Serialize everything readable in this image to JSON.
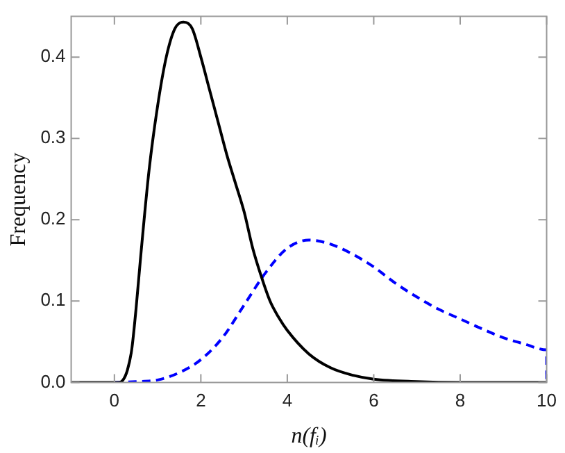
{
  "chart_data": {
    "type": "line",
    "xlabel": "n(fᵢ)",
    "ylabel": "Frequency",
    "xlim": [
      -1,
      10
    ],
    "ylim": [
      0,
      0.45
    ],
    "xticks": [
      0,
      2,
      4,
      6,
      8,
      10
    ],
    "yticks": [
      {
        "value": 0,
        "label": "0.0"
      },
      0.1,
      0.2,
      0.3,
      0.4
    ],
    "grid": false,
    "legend": false,
    "marker": "none",
    "series": [
      {
        "color": "#000000",
        "line_style": "solid",
        "x": [
          -1,
          0,
          0.1,
          0.2,
          0.3,
          0.4,
          0.5,
          0.6,
          0.8,
          1.0,
          1.2,
          1.4,
          1.6,
          1.8,
          2.0,
          2.2,
          2.4,
          2.6,
          2.8,
          3.0,
          3.2,
          3.4,
          3.6,
          3.8,
          4.0,
          4.5,
          5.0,
          5.5,
          6.0,
          7.0,
          8.0,
          10.0
        ],
        "values": [
          0,
          0,
          0,
          0.003,
          0.015,
          0.04,
          0.09,
          0.15,
          0.26,
          0.34,
          0.4,
          0.435,
          0.443,
          0.435,
          0.4,
          0.36,
          0.32,
          0.28,
          0.245,
          0.21,
          0.165,
          0.13,
          0.1,
          0.08,
          0.064,
          0.035,
          0.018,
          0.009,
          0.004,
          0.001,
          0,
          0
        ]
      },
      {
        "color": "#0000ff",
        "line_style": "dashed",
        "x": [
          0,
          0.5,
          1,
          1.5,
          2,
          2.5,
          3,
          3.5,
          4,
          4.5,
          5,
          5.5,
          6,
          6.5,
          7,
          7.5,
          8,
          8.5,
          9,
          9.5,
          10,
          10
        ],
        "values": [
          0,
          0.001,
          0.003,
          0.012,
          0.028,
          0.055,
          0.095,
          0.135,
          0.165,
          0.175,
          0.17,
          0.158,
          0.142,
          0.122,
          0.105,
          0.09,
          0.078,
          0.066,
          0.055,
          0.047,
          0.04,
          0
        ]
      }
    ]
  }
}
